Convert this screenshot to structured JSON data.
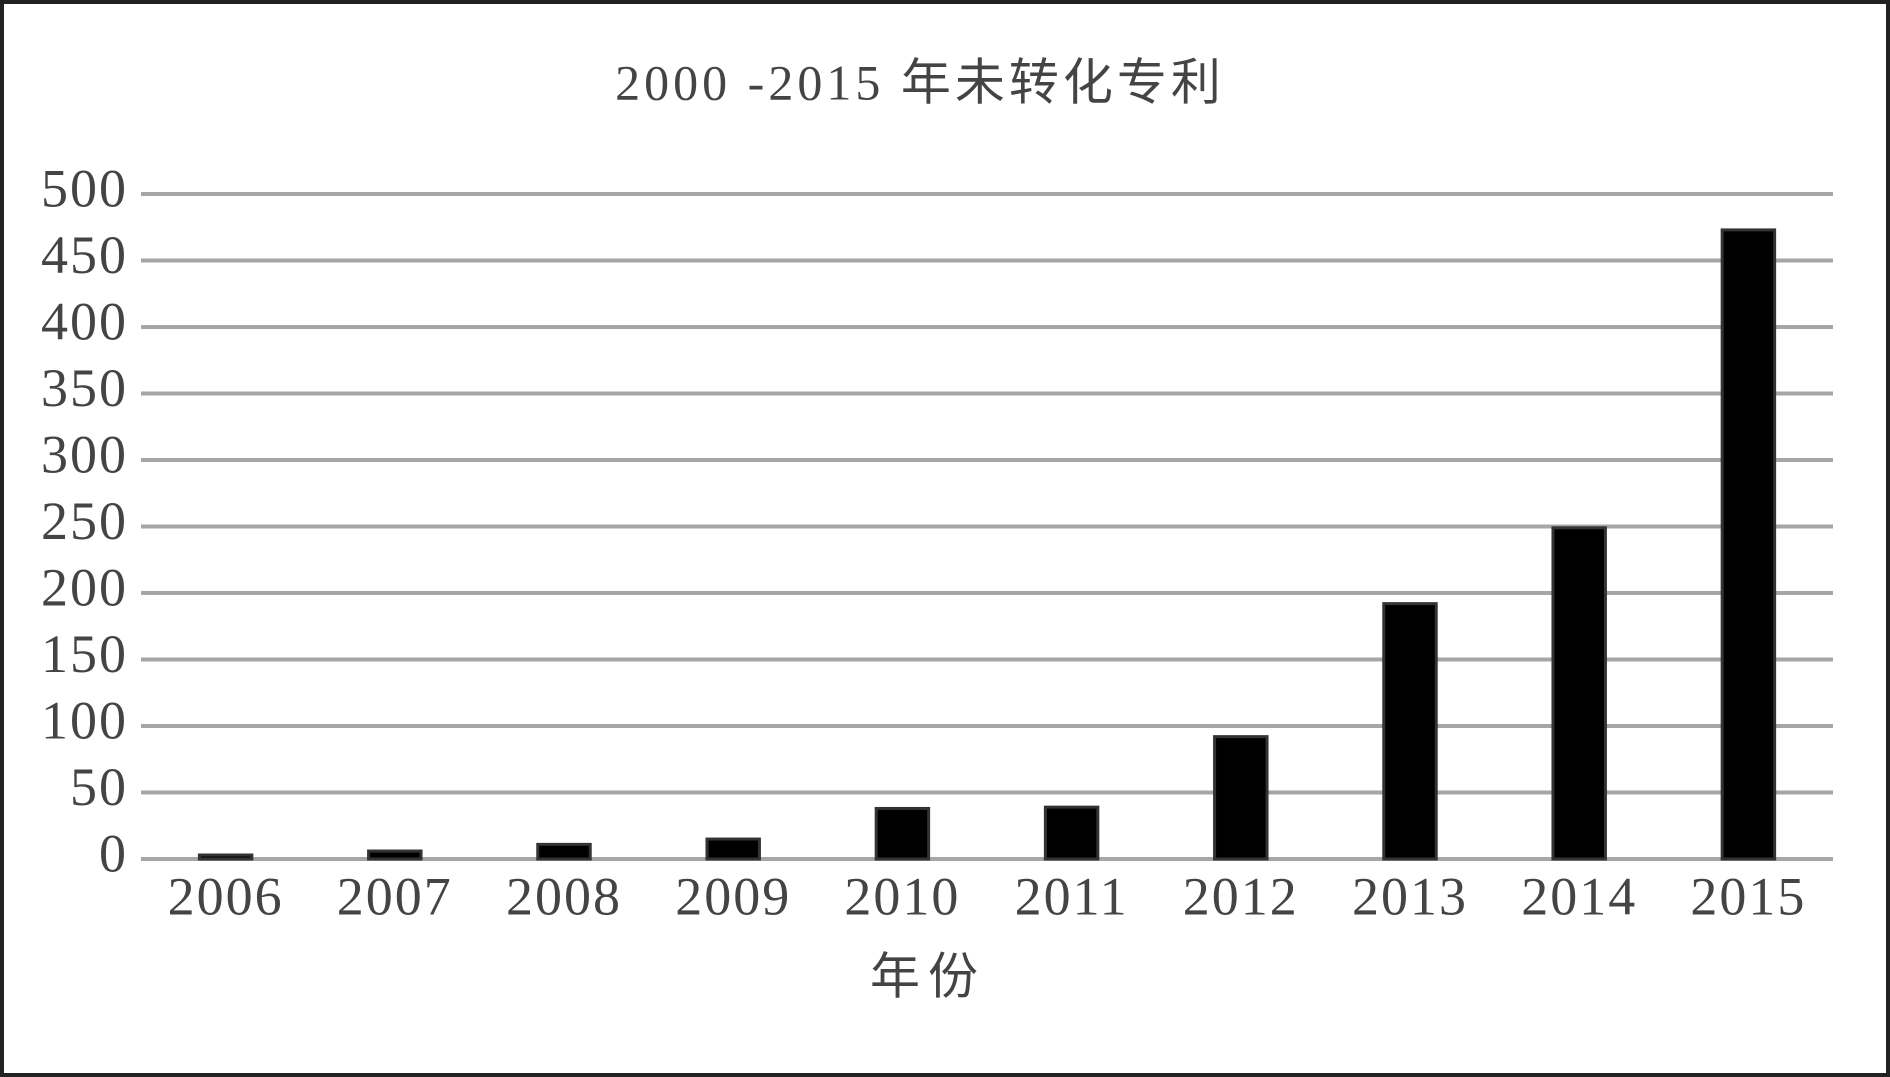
{
  "chart_data": {
    "type": "bar",
    "title": "2000 -2015 年未转化专利",
    "x_label": "年份",
    "categories": [
      "2006",
      "2007",
      "2008",
      "2009",
      "2010",
      "2011",
      "2012",
      "2013",
      "2014",
      "2015"
    ],
    "values": [
      3,
      6,
      11,
      15,
      38,
      39,
      92,
      192,
      249,
      473
    ],
    "color": "#000000",
    "ylim": [
      0,
      500
    ],
    "yticks": [
      0,
      50,
      100,
      150,
      200,
      250,
      300,
      350,
      400,
      450,
      500
    ],
    "grid": true
  }
}
